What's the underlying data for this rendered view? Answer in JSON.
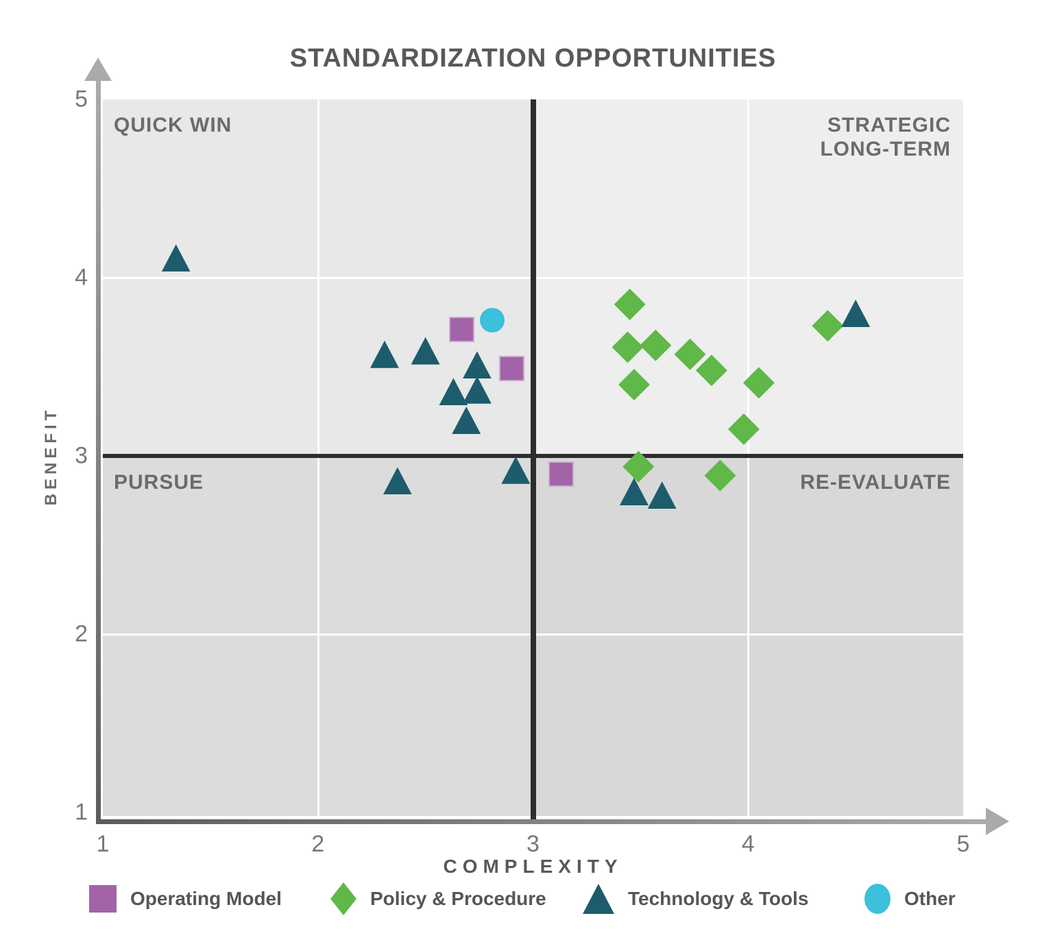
{
  "title": "STANDARDIZATION OPPORTUNITIES",
  "chart_data": {
    "type": "scatter",
    "title": "STANDARDIZATION OPPORTUNITIES",
    "xlabel": "COMPLEXITY",
    "ylabel": "BENEFIT",
    "xlim": [
      1,
      5
    ],
    "ylim": [
      1,
      5
    ],
    "xticks": [
      1,
      2,
      3,
      4,
      5
    ],
    "yticks": [
      1,
      2,
      3,
      4,
      5
    ],
    "grid": true,
    "gridline_color": "#ffffff",
    "divider_color": "#2d2d2d",
    "axis_color": "#8a8b8d",
    "quadrant_divider": {
      "x": 3,
      "y": 3
    },
    "quadrant_colors": {
      "top_left": "#e8e8e8",
      "top_right": "#eeeeee",
      "bottom_left": "#dcdcdc",
      "bottom_right": "#d8d8d8"
    },
    "quadrants": [
      {
        "position": "top-left",
        "label": "QUICK WIN"
      },
      {
        "position": "top-right",
        "label": "STRATEGIC\nLONG-TERM"
      },
      {
        "position": "bottom-left",
        "label": "PURSUE"
      },
      {
        "position": "bottom-right",
        "label": "RE-EVALUATE"
      }
    ],
    "legend_position": "bottom",
    "series": [
      {
        "name": "Operating Model",
        "marker": "square",
        "color": "#a263a8",
        "points": [
          [
            2.67,
            3.71
          ],
          [
            2.9,
            3.49
          ],
          [
            3.13,
            2.9
          ]
        ]
      },
      {
        "name": "Policy & Procedure",
        "marker": "diamond",
        "color": "#5fb848",
        "points": [
          [
            3.45,
            3.85
          ],
          [
            3.44,
            3.61
          ],
          [
            3.57,
            3.62
          ],
          [
            3.73,
            3.57
          ],
          [
            3.83,
            3.48
          ],
          [
            3.47,
            3.4
          ],
          [
            4.05,
            3.41
          ],
          [
            3.98,
            3.15
          ],
          [
            4.37,
            3.73
          ],
          [
            3.49,
            2.94
          ],
          [
            3.87,
            2.89
          ]
        ]
      },
      {
        "name": "Technology & Tools",
        "marker": "triangle",
        "color": "#1c5c6c",
        "points": [
          [
            1.34,
            4.11
          ],
          [
            2.31,
            3.57
          ],
          [
            2.5,
            3.59
          ],
          [
            2.74,
            3.51
          ],
          [
            2.63,
            3.36
          ],
          [
            2.74,
            3.37
          ],
          [
            2.69,
            3.2
          ],
          [
            2.37,
            2.86
          ],
          [
            2.92,
            2.92
          ],
          [
            3.47,
            2.8
          ],
          [
            3.6,
            2.78
          ],
          [
            4.5,
            3.8
          ]
        ]
      },
      {
        "name": "Other",
        "marker": "circle",
        "color": "#3cc0dc",
        "points": [
          [
            2.81,
            3.76
          ]
        ]
      }
    ]
  }
}
